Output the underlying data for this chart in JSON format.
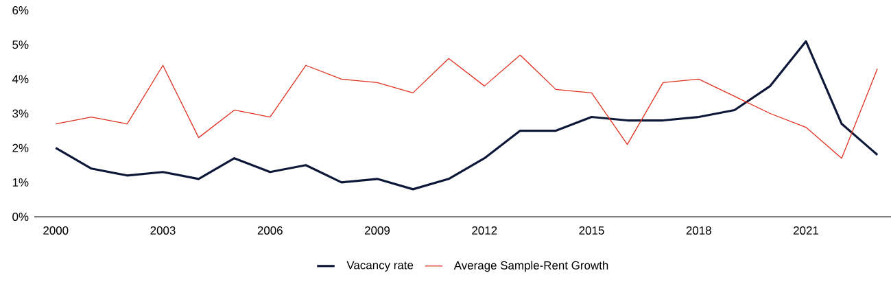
{
  "chart_data": {
    "type": "line",
    "x": [
      2000,
      2001,
      2002,
      2003,
      2004,
      2005,
      2006,
      2007,
      2008,
      2009,
      2010,
      2011,
      2012,
      2013,
      2014,
      2015,
      2016,
      2017,
      2018,
      2019,
      2020,
      2021,
      2022,
      2023
    ],
    "series": [
      {
        "name": "Vacancy rate",
        "color": "#0d1738",
        "values": [
          2.0,
          1.4,
          1.2,
          1.3,
          1.1,
          1.7,
          1.3,
          1.5,
          1.0,
          1.1,
          0.8,
          1.1,
          1.7,
          2.5,
          2.5,
          2.9,
          2.8,
          2.8,
          2.9,
          3.1,
          3.8,
          5.1,
          2.7,
          1.8
        ]
      },
      {
        "name": "Average Sample-Rent Growth",
        "color": "#e0301e",
        "values": [
          2.7,
          2.9,
          2.7,
          4.4,
          2.3,
          3.1,
          2.9,
          4.4,
          4.0,
          3.9,
          3.6,
          4.6,
          3.8,
          4.7,
          3.7,
          3.6,
          2.1,
          3.9,
          4.0,
          3.5,
          3.0,
          2.6,
          1.7,
          4.3
        ]
      }
    ],
    "xlim": [
      1999.4,
      2023.4
    ],
    "xticks": [
      2000,
      2003,
      2006,
      2009,
      2012,
      2015,
      2018,
      2021
    ],
    "ylim": [
      0,
      6
    ],
    "yticks": [
      {
        "value": 0,
        "label": "0%"
      },
      {
        "value": 1,
        "label": "1%"
      },
      {
        "value": 2,
        "label": "2%"
      },
      {
        "value": 3,
        "label": "3%"
      },
      {
        "value": 4,
        "label": "4%"
      },
      {
        "value": 5,
        "label": "5%"
      },
      {
        "value": 6,
        "label": "6%"
      }
    ],
    "legend": "bottom"
  }
}
